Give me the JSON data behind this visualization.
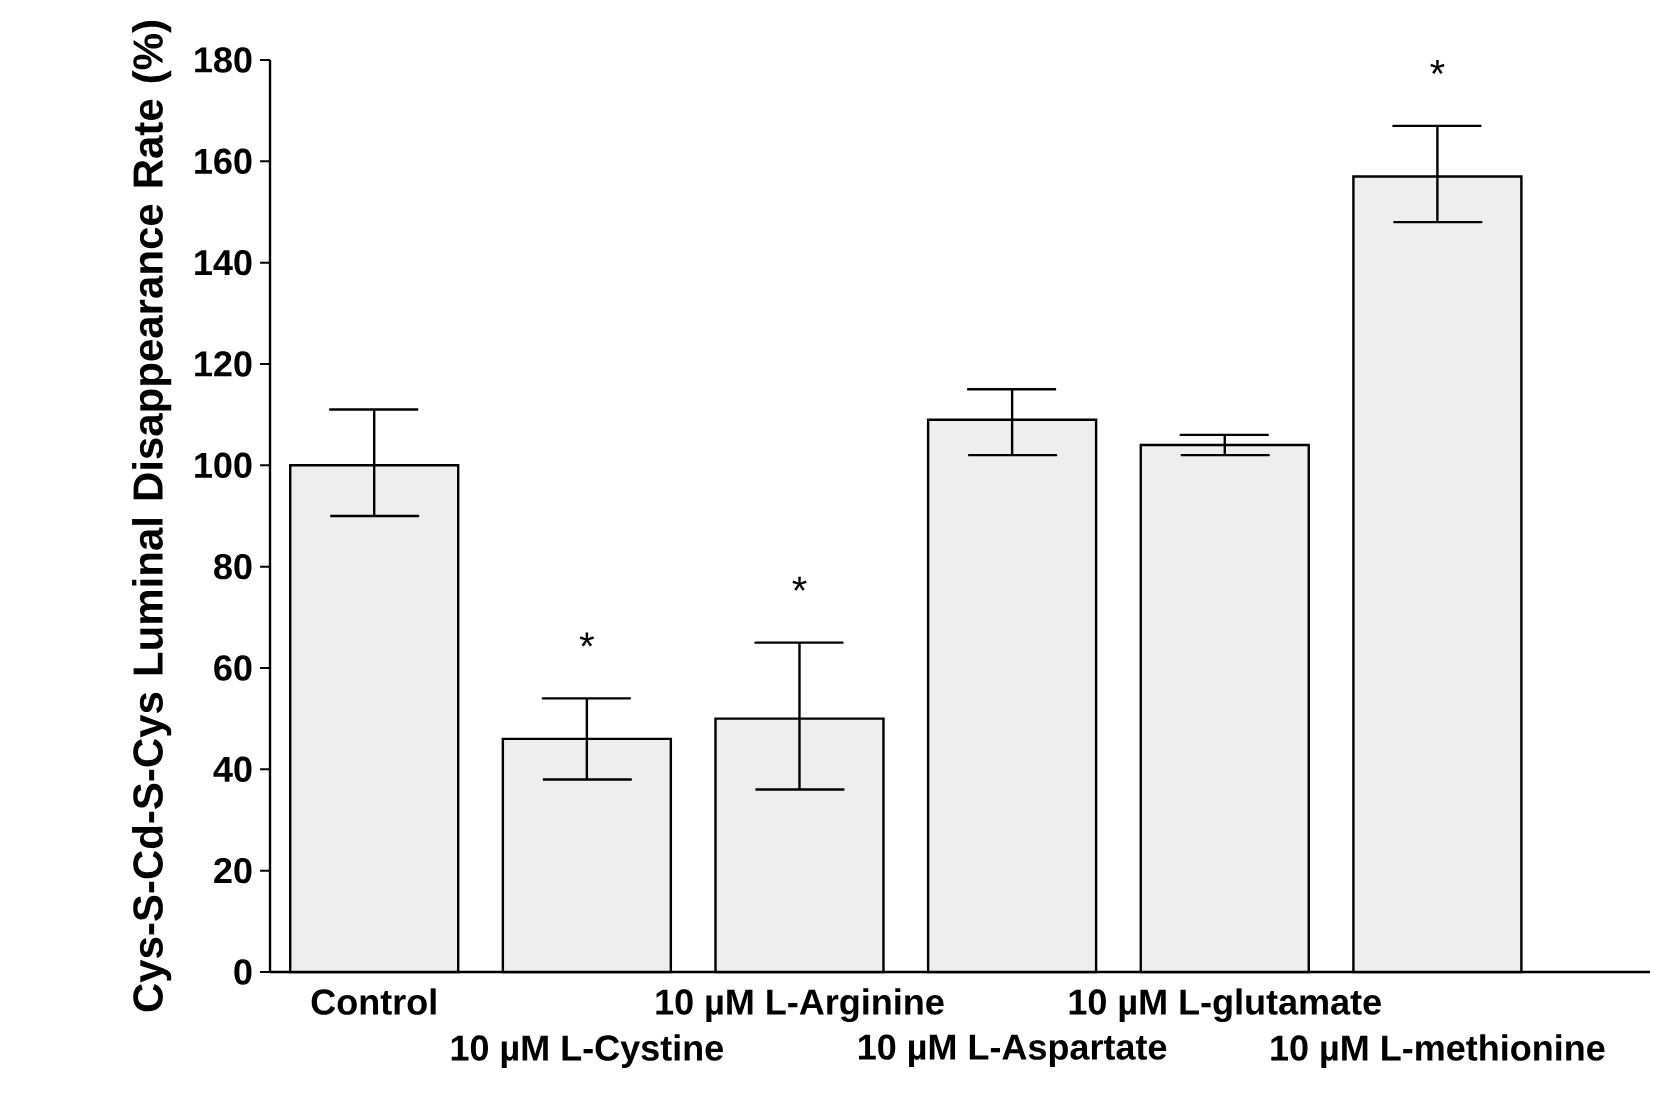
{
  "chart_data": {
    "type": "bar",
    "ylabel": "Cys-S-Cd-S-Cys Luminal Disappearance Rate (%)",
    "categories": [
      "Control",
      "10 µM L-Cystine",
      "10 µM L-Arginine",
      "10 µM L-Aspartate",
      "10 µM L-glutamate",
      "10 µM L-methionine"
    ],
    "values": [
      100,
      46,
      50,
      109,
      104,
      157
    ],
    "errors": [
      [
        90,
        111
      ],
      [
        38,
        54
      ],
      [
        36,
        65
      ],
      [
        102,
        115
      ],
      [
        102,
        106
      ],
      [
        148,
        167
      ]
    ],
    "color": "#eeeeee",
    "ylim": [
      0,
      180
    ],
    "yticks": [
      0,
      20,
      40,
      60,
      80,
      100,
      120,
      140,
      160,
      180
    ],
    "value_labels": [
      null,
      "*",
      "*",
      null,
      null,
      "*"
    ],
    "grid": false
  }
}
